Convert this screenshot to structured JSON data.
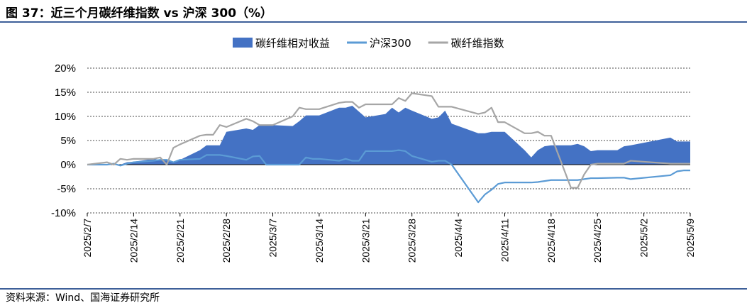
{
  "title": "图 37：近三个月碳纤维指数 vs 沪深 300（%）",
  "source": "资料来源：Wind、国海证券研究所",
  "colors": {
    "area": "#4472c4",
    "hs300": "#5b9bd5",
    "index": "#a6a6a6",
    "rule": "#3d5f99"
  },
  "chart_data": {
    "type": "area",
    "ylim": [
      -10,
      20
    ],
    "yticks": [
      -10,
      -5,
      0,
      5,
      10,
      15,
      20
    ],
    "ytick_labels": [
      "-10%",
      "-5%",
      "0%",
      "5%",
      "10%",
      "15%",
      "20%"
    ],
    "grid": true,
    "legend_position": "top",
    "xtick_labels": [
      "2025/2/7",
      "2025/2/14",
      "2025/2/21",
      "2025/2/28",
      "2025/3/7",
      "2025/3/14",
      "2025/3/21",
      "2025/3/28",
      "2025/4/4",
      "2025/4/11",
      "2025/4/18",
      "2025/4/25",
      "2025/5/2",
      "2025/5/9"
    ],
    "x_start": "2025/2/7",
    "x_end": "2025/5/9",
    "series": [
      {
        "name": "碳纤维相对收益",
        "kind": "area",
        "points": [
          [
            "2025/2/7",
            0
          ],
          [
            "2025/2/10",
            0
          ],
          [
            "2025/2/11",
            0.2
          ],
          [
            "2025/2/12",
            0
          ],
          [
            "2025/2/13",
            0.5
          ],
          [
            "2025/2/14",
            0.6
          ],
          [
            "2025/2/17",
            1.2
          ],
          [
            "2025/2/18",
            1.0
          ],
          [
            "2025/2/19",
            1.0
          ],
          [
            "2025/2/20",
            0.5
          ],
          [
            "2025/2/21",
            1.0
          ],
          [
            "2025/2/24",
            3.0
          ],
          [
            "2025/2/25",
            4.0
          ],
          [
            "2025/2/26",
            4.0
          ],
          [
            "2025/2/27",
            4.0
          ],
          [
            "2025/2/28",
            6.8
          ],
          [
            "2025/3/3",
            7.5
          ],
          [
            "2025/3/4",
            7.2
          ],
          [
            "2025/3/5",
            8.2
          ],
          [
            "2025/3/6",
            8.2
          ],
          [
            "2025/3/7",
            8.2
          ],
          [
            "2025/3/10",
            8.0
          ],
          [
            "2025/3/11",
            9.0
          ],
          [
            "2025/3/12",
            10.2
          ],
          [
            "2025/3/13",
            10.2
          ],
          [
            "2025/3/14",
            10.2
          ],
          [
            "2025/3/17",
            11.8
          ],
          [
            "2025/3/18",
            11.8
          ],
          [
            "2025/3/19",
            12.2
          ],
          [
            "2025/3/20",
            11.0
          ],
          [
            "2025/3/21",
            9.8
          ],
          [
            "2025/3/24",
            10.5
          ],
          [
            "2025/3/25",
            11.8
          ],
          [
            "2025/3/26",
            10.8
          ],
          [
            "2025/3/27",
            11.8
          ],
          [
            "2025/3/28",
            11.2
          ],
          [
            "2025/3/31",
            9.5
          ],
          [
            "2025/4/1",
            9.8
          ],
          [
            "2025/4/2",
            11.2
          ],
          [
            "2025/4/3",
            8.5
          ],
          [
            "2025/4/7",
            6.5
          ],
          [
            "2025/4/8",
            6.5
          ],
          [
            "2025/4/9",
            6.8
          ],
          [
            "2025/4/10",
            6.8
          ],
          [
            "2025/4/11",
            6.8
          ],
          [
            "2025/4/14",
            3.0
          ],
          [
            "2025/4/15",
            1.5
          ],
          [
            "2025/4/16",
            3.0
          ],
          [
            "2025/4/17",
            3.8
          ],
          [
            "2025/4/18",
            4.0
          ],
          [
            "2025/4/21",
            4.0
          ],
          [
            "2025/4/22",
            4.3
          ],
          [
            "2025/4/23",
            3.8
          ],
          [
            "2025/4/24",
            2.8
          ],
          [
            "2025/4/25",
            3.0
          ],
          [
            "2025/4/28",
            3.0
          ],
          [
            "2025/4/29",
            3.8
          ],
          [
            "2025/4/30",
            4.0
          ],
          [
            "2025/5/6",
            5.6
          ],
          [
            "2025/5/7",
            4.8
          ],
          [
            "2025/5/8",
            4.8
          ],
          [
            "2025/5/9",
            4.8
          ]
        ]
      },
      {
        "name": "沪深300",
        "kind": "line",
        "points": [
          [
            "2025/2/7",
            0
          ],
          [
            "2025/2/10",
            0
          ],
          [
            "2025/2/11",
            0.2
          ],
          [
            "2025/2/12",
            -0.2
          ],
          [
            "2025/2/13",
            0.2
          ],
          [
            "2025/2/14",
            0.5
          ],
          [
            "2025/2/17",
            0.8
          ],
          [
            "2025/2/18",
            1.0
          ],
          [
            "2025/2/19",
            1.0
          ],
          [
            "2025/2/20",
            0.5
          ],
          [
            "2025/2/21",
            1.0
          ],
          [
            "2025/2/24",
            1.2
          ],
          [
            "2025/2/25",
            2.0
          ],
          [
            "2025/2/26",
            2.0
          ],
          [
            "2025/2/27",
            2.0
          ],
          [
            "2025/2/28",
            1.8
          ],
          [
            "2025/3/3",
            1.0
          ],
          [
            "2025/3/4",
            1.7
          ],
          [
            "2025/3/5",
            1.8
          ],
          [
            "2025/3/6",
            0
          ],
          [
            "2025/3/7",
            0
          ],
          [
            "2025/3/10",
            0
          ],
          [
            "2025/3/11",
            0
          ],
          [
            "2025/3/12",
            1.5
          ],
          [
            "2025/3/13",
            1.2
          ],
          [
            "2025/3/14",
            1.2
          ],
          [
            "2025/3/17",
            0.8
          ],
          [
            "2025/3/18",
            1.2
          ],
          [
            "2025/3/19",
            0.8
          ],
          [
            "2025/3/20",
            0.8
          ],
          [
            "2025/3/21",
            2.8
          ],
          [
            "2025/3/24",
            2.8
          ],
          [
            "2025/3/25",
            2.8
          ],
          [
            "2025/3/26",
            3.0
          ],
          [
            "2025/3/27",
            2.8
          ],
          [
            "2025/3/28",
            1.8
          ],
          [
            "2025/3/31",
            0.6
          ],
          [
            "2025/4/1",
            0.8
          ],
          [
            "2025/4/2",
            0.8
          ],
          [
            "2025/4/3",
            0
          ],
          [
            "2025/4/7",
            -7.8
          ],
          [
            "2025/4/8",
            -6.2
          ],
          [
            "2025/4/9",
            -5.2
          ],
          [
            "2025/4/10",
            -4.0
          ],
          [
            "2025/4/11",
            -3.7
          ],
          [
            "2025/4/14",
            -3.7
          ],
          [
            "2025/4/15",
            -3.7
          ],
          [
            "2025/4/16",
            -3.6
          ],
          [
            "2025/4/17",
            -3.4
          ],
          [
            "2025/4/18",
            -3.2
          ],
          [
            "2025/4/21",
            -3.2
          ],
          [
            "2025/4/22",
            -3.2
          ],
          [
            "2025/4/23",
            -3.0
          ],
          [
            "2025/4/24",
            -2.8
          ],
          [
            "2025/4/25",
            -2.8
          ],
          [
            "2025/4/28",
            -2.7
          ],
          [
            "2025/4/29",
            -2.7
          ],
          [
            "2025/4/30",
            -3.0
          ],
          [
            "2025/5/6",
            -2.2
          ],
          [
            "2025/5/7",
            -1.4
          ],
          [
            "2025/5/8",
            -1.2
          ],
          [
            "2025/5/9",
            -1.2
          ]
        ]
      },
      {
        "name": "碳纤维指数",
        "kind": "line",
        "points": [
          [
            "2025/2/7",
            0
          ],
          [
            "2025/2/10",
            0.5
          ],
          [
            "2025/2/11",
            0
          ],
          [
            "2025/2/12",
            1.2
          ],
          [
            "2025/2/13",
            1.0
          ],
          [
            "2025/2/14",
            1.2
          ],
          [
            "2025/2/17",
            1.2
          ],
          [
            "2025/2/18",
            1.5
          ],
          [
            "2025/2/19",
            0
          ],
          [
            "2025/2/20",
            3.5
          ],
          [
            "2025/2/21",
            4.2
          ],
          [
            "2025/2/24",
            6.0
          ],
          [
            "2025/2/25",
            6.2
          ],
          [
            "2025/2/26",
            6.2
          ],
          [
            "2025/2/27",
            8.2
          ],
          [
            "2025/2/28",
            7.8
          ],
          [
            "2025/3/3",
            9.5
          ],
          [
            "2025/3/4",
            9.0
          ],
          [
            "2025/3/5",
            8.2
          ],
          [
            "2025/3/6",
            8.2
          ],
          [
            "2025/3/7",
            8.2
          ],
          [
            "2025/3/10",
            10.0
          ],
          [
            "2025/3/11",
            11.8
          ],
          [
            "2025/3/12",
            11.5
          ],
          [
            "2025/3/13",
            11.5
          ],
          [
            "2025/3/14",
            11.5
          ],
          [
            "2025/3/17",
            12.8
          ],
          [
            "2025/3/18",
            13.0
          ],
          [
            "2025/3/19",
            13.0
          ],
          [
            "2025/3/20",
            11.8
          ],
          [
            "2025/3/21",
            12.5
          ],
          [
            "2025/3/24",
            12.5
          ],
          [
            "2025/3/25",
            12.5
          ],
          [
            "2025/3/26",
            13.8
          ],
          [
            "2025/3/27",
            13.2
          ],
          [
            "2025/3/28",
            14.8
          ],
          [
            "2025/3/31",
            14.2
          ],
          [
            "2025/4/1",
            12.0
          ],
          [
            "2025/4/2",
            12.0
          ],
          [
            "2025/4/3",
            12.0
          ],
          [
            "2025/4/7",
            10.5
          ],
          [
            "2025/4/8",
            10.8
          ],
          [
            "2025/4/9",
            11.8
          ],
          [
            "2025/4/10",
            8.8
          ],
          [
            "2025/4/11",
            8.8
          ],
          [
            "2025/4/14",
            6.5
          ],
          [
            "2025/4/15",
            6.5
          ],
          [
            "2025/4/16",
            6.8
          ],
          [
            "2025/4/17",
            6.0
          ],
          [
            "2025/4/18",
            6.0
          ],
          [
            "2025/4/21",
            -4.8
          ],
          [
            "2025/4/22",
            -4.8
          ],
          [
            "2025/4/23",
            -2.0
          ],
          [
            "2025/4/24",
            0
          ],
          [
            "2025/4/25",
            0.2
          ],
          [
            "2025/4/28",
            0.2
          ],
          [
            "2025/4/29",
            0.2
          ],
          [
            "2025/4/30",
            0.8
          ],
          [
            "2025/5/6",
            0.2
          ],
          [
            "2025/5/7",
            0.2
          ],
          [
            "2025/5/8",
            0.2
          ],
          [
            "2025/5/9",
            0.2
          ]
        ]
      }
    ]
  }
}
